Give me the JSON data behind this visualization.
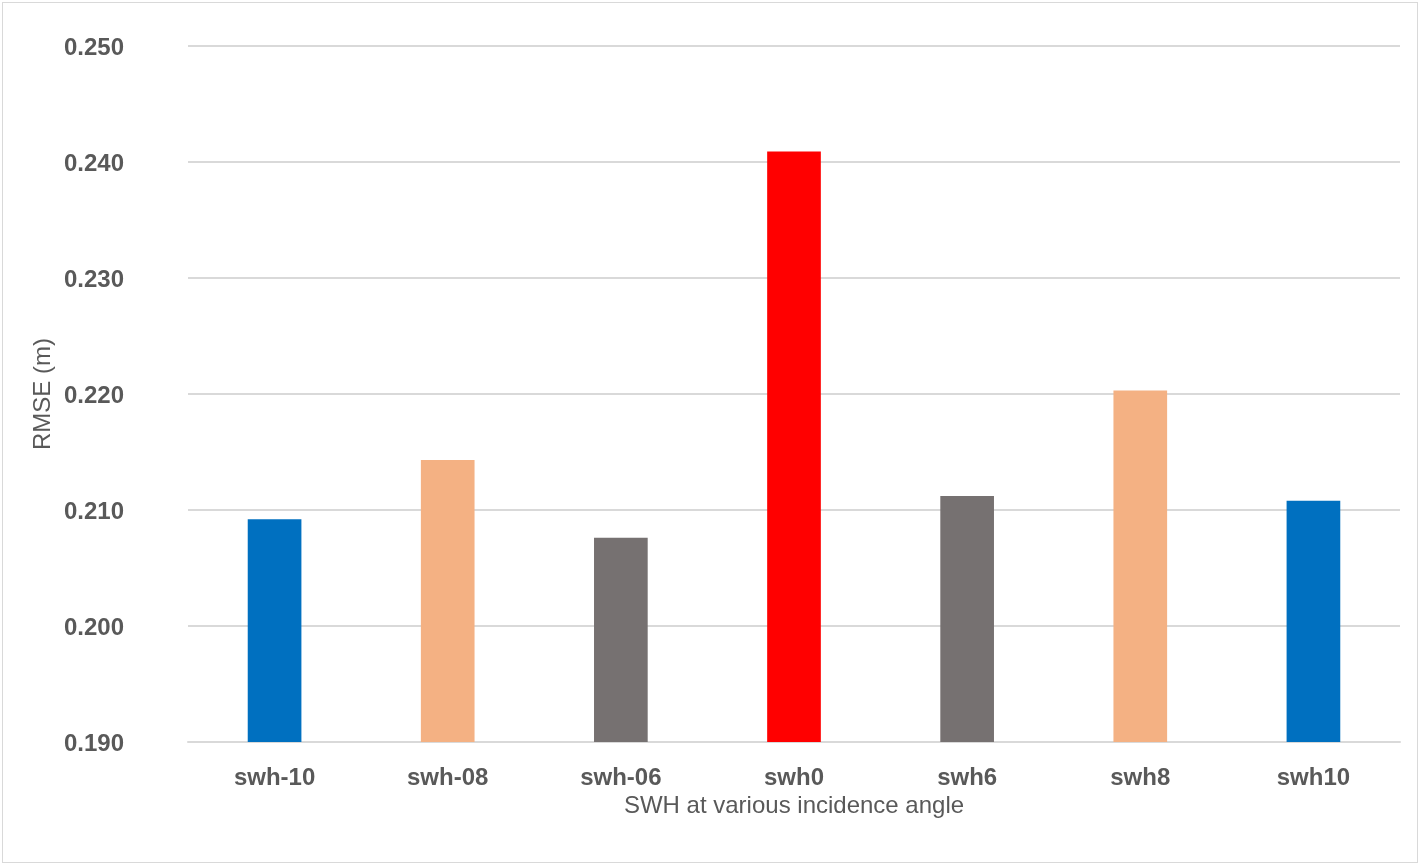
{
  "chart_data": {
    "type": "bar",
    "xlabel": "SWH at various incidence angle",
    "ylabel": "RMSE (m)",
    "categories": [
      "swh-10",
      "swh-08",
      "swh-06",
      "swh0",
      "swh6",
      "swh8",
      "swh10"
    ],
    "values": [
      0.2092,
      0.2143,
      0.2076,
      0.2409,
      0.2112,
      0.2203,
      0.2108
    ],
    "colors": [
      "#0070c0",
      "#f4b183",
      "#767171",
      "#ff0000",
      "#767171",
      "#f4b183",
      "#0070c0"
    ],
    "ylim": [
      0.19,
      0.25
    ],
    "yticks": [
      {
        "value": 0.19,
        "label": "0.190"
      },
      {
        "value": 0.2,
        "label": "0.200"
      },
      {
        "value": 0.21,
        "label": "0.210"
      },
      {
        "value": 0.22,
        "label": "0.220"
      },
      {
        "value": 0.23,
        "label": "0.230"
      },
      {
        "value": 0.24,
        "label": "0.240"
      },
      {
        "value": 0.25,
        "label": "0.250"
      }
    ],
    "grid": "y"
  }
}
